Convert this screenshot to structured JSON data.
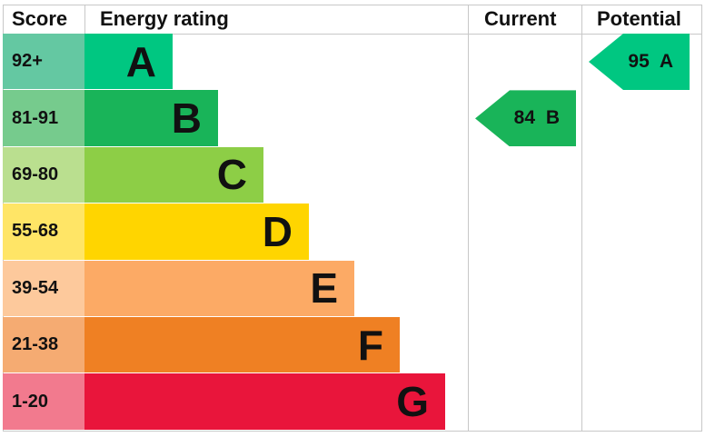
{
  "chart_data": {
    "type": "table",
    "headers": {
      "score": "Score",
      "rating": "Energy rating",
      "current": "Current",
      "potential": "Potential"
    },
    "bands": [
      {
        "score": "92+",
        "letter": "A",
        "color": "#00c781",
        "score_color": "#64c8a2"
      },
      {
        "score": "81-91",
        "letter": "B",
        "color": "#19b459",
        "score_color": "#76cb8d"
      },
      {
        "score": "69-80",
        "letter": "C",
        "color": "#8dce46",
        "score_color": "#badf8f"
      },
      {
        "score": "55-68",
        "letter": "D",
        "color": "#ffd500",
        "score_color": "#ffe566"
      },
      {
        "score": "39-54",
        "letter": "E",
        "color": "#fcaa65",
        "score_color": "#fdc99c"
      },
      {
        "score": "21-38",
        "letter": "F",
        "color": "#ef8023",
        "score_color": "#f5ab72"
      },
      {
        "score": "1-20",
        "letter": "G",
        "color": "#e9153b",
        "score_color": "#f27a8e"
      }
    ],
    "current": {
      "value": 84,
      "band": "B",
      "label": "84 B"
    },
    "potential": {
      "value": 95,
      "band": "A",
      "label": "95 A"
    }
  }
}
